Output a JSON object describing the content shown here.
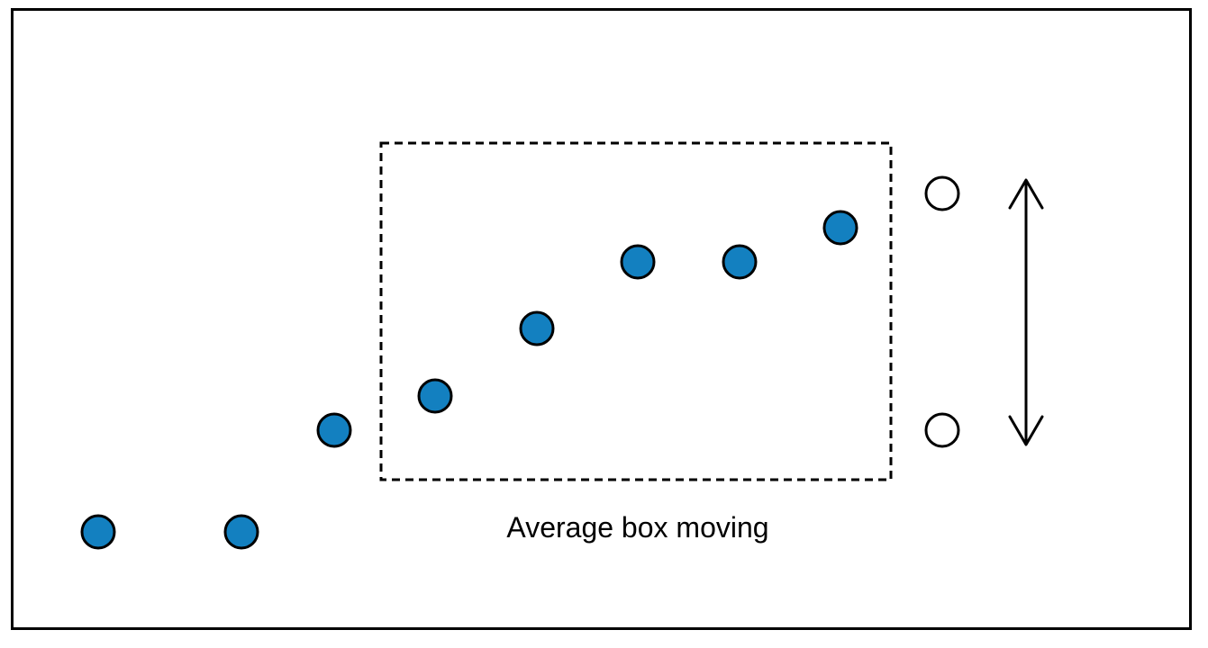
{
  "diagram": {
    "caption": "Average box moving",
    "colors": {
      "point_fill": "#1380c0",
      "point_stroke": "#000000",
      "open_point_fill": "#ffffff",
      "box_stroke": "#000000",
      "arrow": "#000000"
    },
    "icons": {
      "arrow": "double-headed-vertical-arrow"
    }
  }
}
